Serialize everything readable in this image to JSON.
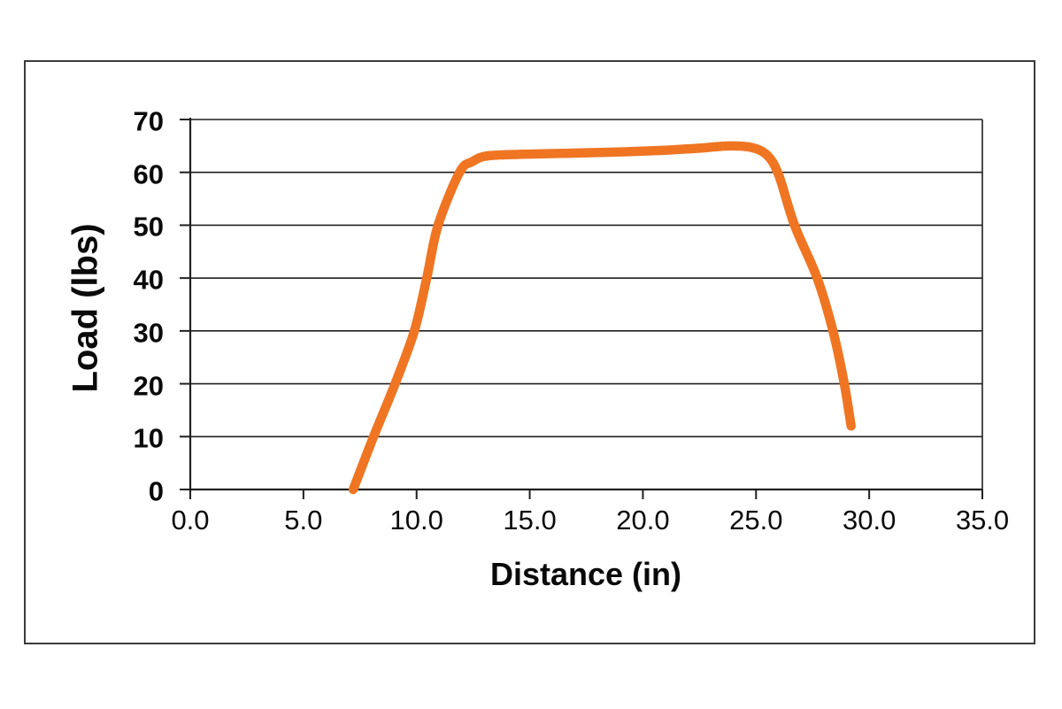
{
  "frame": {
    "background": "#ffffff",
    "border_color": "#3a3a3a"
  },
  "chart_data": {
    "type": "line",
    "title": "",
    "xlabel": "Distance (in)",
    "ylabel": "Load (lbs)",
    "xlim": [
      0.0,
      35.0
    ],
    "ylim": [
      0,
      70
    ],
    "x_tick_values": [
      0,
      5,
      10,
      15,
      20,
      25,
      30,
      35
    ],
    "x_tick_labels": [
      "0.0",
      "5.0",
      "10.0",
      "15.0",
      "20.0",
      "25.0",
      "30.0",
      "35.0"
    ],
    "y_tick_values": [
      0,
      10,
      20,
      30,
      40,
      50,
      60,
      70
    ],
    "y_tick_labels": [
      "0",
      "10",
      "20",
      "30",
      "40",
      "50",
      "60",
      "70"
    ],
    "grid": "horizontal gridlines every 10 lbs",
    "legend_position": "none",
    "axis_color": "#1f1f1f",
    "series": [
      {
        "name": "load-vs-distance",
        "color": "#EF7523",
        "line_width": 10.5,
        "points": [
          [
            7.2,
            0
          ],
          [
            8.1,
            10
          ],
          [
            9.05,
            20
          ],
          [
            9.9,
            30
          ],
          [
            10.45,
            40
          ],
          [
            10.95,
            50
          ],
          [
            11.9,
            60
          ],
          [
            12.45,
            62
          ],
          [
            13.1,
            63.1
          ],
          [
            14.5,
            63.4
          ],
          [
            16.5,
            63.6
          ],
          [
            18.5,
            63.8
          ],
          [
            20.5,
            64.1
          ],
          [
            22.3,
            64.5
          ],
          [
            23.8,
            65.0
          ],
          [
            24.8,
            64.7
          ],
          [
            25.5,
            63.2
          ],
          [
            26.0,
            59.5
          ],
          [
            26.7,
            50
          ],
          [
            27.7,
            40
          ],
          [
            28.4,
            30
          ],
          [
            28.9,
            20
          ],
          [
            29.2,
            12
          ]
        ]
      }
    ]
  }
}
